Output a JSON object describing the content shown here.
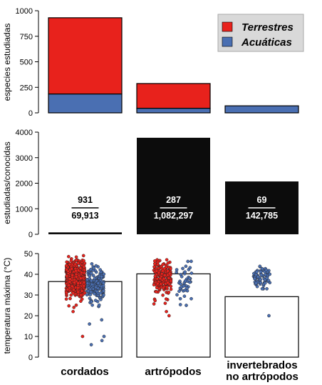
{
  "categories": [
    "cordados",
    "artrópodos",
    "invertebrados no artrópodos"
  ],
  "colors": {
    "terrestrial": "#e8221c",
    "aquatic": "#4a6fb2",
    "ratio_bar": "#0c0c0c",
    "median_bar": "#ffffff"
  },
  "chart_data": [
    {
      "type": "bar",
      "stacked": true,
      "ylabel": "especies estudiadas",
      "ylim": [
        0,
        1000
      ],
      "yticks": [
        "0",
        "250",
        "500",
        "750",
        "1000"
      ],
      "legend": {
        "placement": "top-right",
        "entries": [
          "Terrestres",
          "Acuáticas"
        ]
      },
      "categories": [
        "cordados",
        "artrópodos",
        "invertebrados no artrópodos"
      ],
      "series": [
        {
          "name": "Acuáticas",
          "values": [
            185,
            45,
            69
          ]
        },
        {
          "name": "Terrestres",
          "values": [
            746,
            242,
            0
          ]
        }
      ]
    },
    {
      "type": "bar",
      "ylabel": "estudiadas/conocidas",
      "ylim": [
        0,
        4000
      ],
      "yticks": [
        "0",
        "1000",
        "2000",
        "3000",
        "4000"
      ],
      "categories": [
        "cordados",
        "artrópodos",
        "invertebrados no artrópodos"
      ],
      "values": [
        75,
        3780,
        2070
      ],
      "fractions": [
        {
          "studied": "931",
          "known": "69,913"
        },
        {
          "studied": "287",
          "known": "1,082,297"
        },
        {
          "studied": "69",
          "known": "142,785"
        }
      ]
    },
    {
      "type": "scatter",
      "ylabel": "temperatura máxima (°C)",
      "ylim": [
        0,
        50
      ],
      "yticks": [
        "0",
        "10",
        "20",
        "30",
        "40",
        "50"
      ],
      "categories": [
        "cordados",
        "artrópodos",
        "invertebrados no artrópodos"
      ],
      "medians": [
        36.5,
        40.2,
        29.2
      ],
      "distributions": [
        {
          "group": "cordados",
          "series": "Terrestres",
          "n": 746,
          "center": 38,
          "sd": 3.8,
          "min": 20,
          "max": 49,
          "outliers": [
            10,
            22,
            24
          ]
        },
        {
          "group": "cordados",
          "series": "Acuáticas",
          "n": 185,
          "center": 34.5,
          "sd": 4.5,
          "min": 21,
          "max": 46,
          "outliers": [
            6,
            8,
            10,
            16,
            18
          ]
        },
        {
          "group": "artrópodos",
          "series": "Terrestres",
          "n": 242,
          "center": 38.5,
          "sd": 3.8,
          "min": 20,
          "max": 47,
          "outliers": [
            20,
            22,
            26
          ]
        },
        {
          "group": "artrópodos",
          "series": "Acuáticas",
          "n": 45,
          "center": 36,
          "sd": 4.5,
          "min": 25,
          "max": 49,
          "outliers": [
            25
          ]
        },
        {
          "group": "invertebrados no artrópodos",
          "series": "Acuáticas",
          "n": 69,
          "center": 38.5,
          "sd": 2.5,
          "min": 33,
          "max": 46,
          "outliers": [
            20
          ]
        }
      ]
    }
  ]
}
